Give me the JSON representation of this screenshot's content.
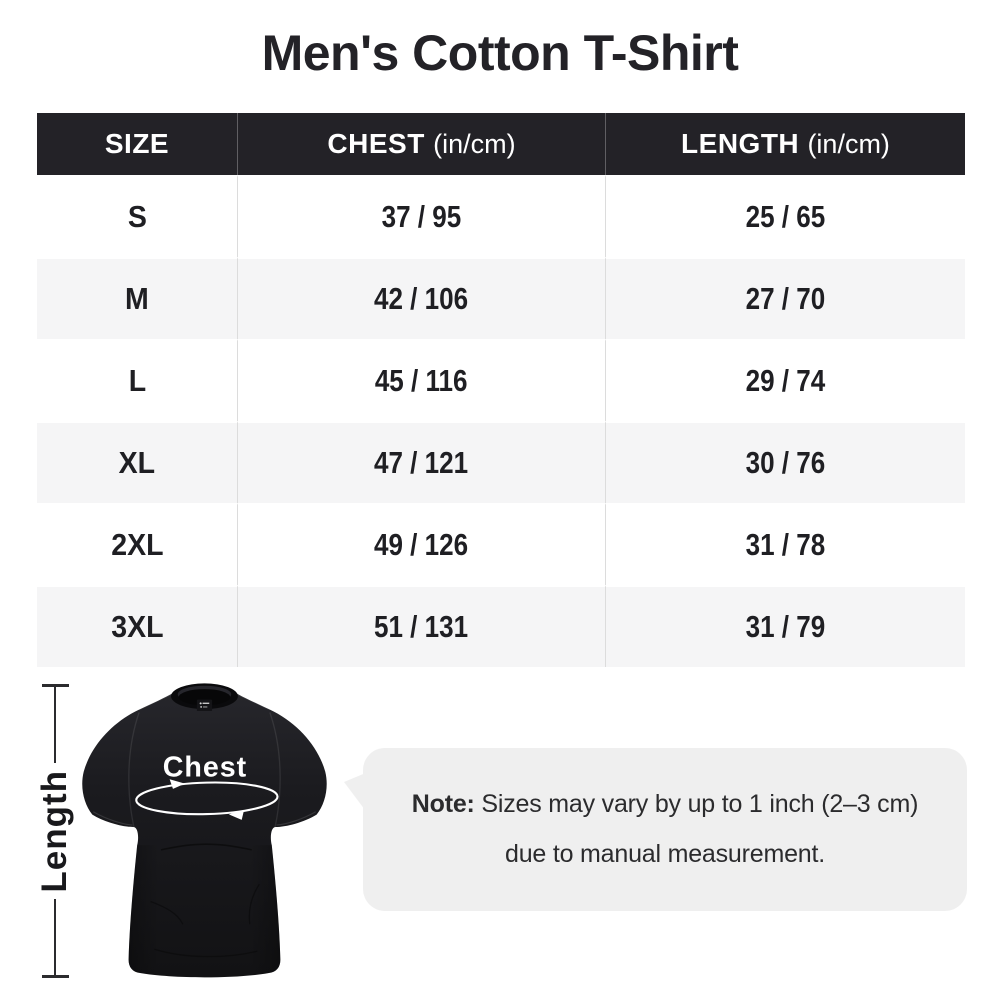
{
  "title": "Men's Cotton T-Shirt",
  "table": {
    "headers": {
      "size": "SIZE",
      "chest": "CHEST",
      "chest_unit": "(in/cm)",
      "length": "LENGTH",
      "length_unit": "(in/cm)"
    },
    "rows": [
      {
        "size": "S",
        "chest": "37 / 95",
        "length": "25 / 65"
      },
      {
        "size": "M",
        "chest": "42 / 106",
        "length": "27 / 70"
      },
      {
        "size": "L",
        "chest": "45 / 116",
        "length": "29 / 74"
      },
      {
        "size": "XL",
        "chest": "47 / 121",
        "length": "30 / 76"
      },
      {
        "size": "2XL",
        "chest": "49 / 126",
        "length": "31 / 78"
      },
      {
        "size": "3XL",
        "chest": "51 / 131",
        "length": "31 / 79"
      }
    ]
  },
  "chart_data": {
    "type": "table",
    "title": "Men's Cotton T-Shirt",
    "columns": [
      "SIZE",
      "CHEST (in/cm)",
      "LENGTH (in/cm)"
    ],
    "rows": [
      [
        "S",
        "37 / 95",
        "25 / 65"
      ],
      [
        "M",
        "42 / 106",
        "27 / 70"
      ],
      [
        "L",
        "45 / 116",
        "29 / 74"
      ],
      [
        "XL",
        "47 / 121",
        "30 / 76"
      ],
      [
        "2XL",
        "49 / 126",
        "31 / 78"
      ],
      [
        "3XL",
        "51 / 131",
        "31 / 79"
      ]
    ]
  },
  "diagram": {
    "length_label": "Length",
    "chest_label": "Chest"
  },
  "note": {
    "label": "Note:",
    "line1": "Sizes may vary by up to 1 inch (2–3 cm)",
    "line2": "due to manual measurement."
  },
  "colors": {
    "header_bg": "#232227",
    "header_text": "#ffffff",
    "row_alt_bg": "#f5f5f6",
    "body_text": "#1f1f23",
    "divider": "#dcdcdc",
    "note_bg": "#efefef",
    "shirt_black": "#1a1a1e",
    "annotation_white": "#ffffff"
  }
}
